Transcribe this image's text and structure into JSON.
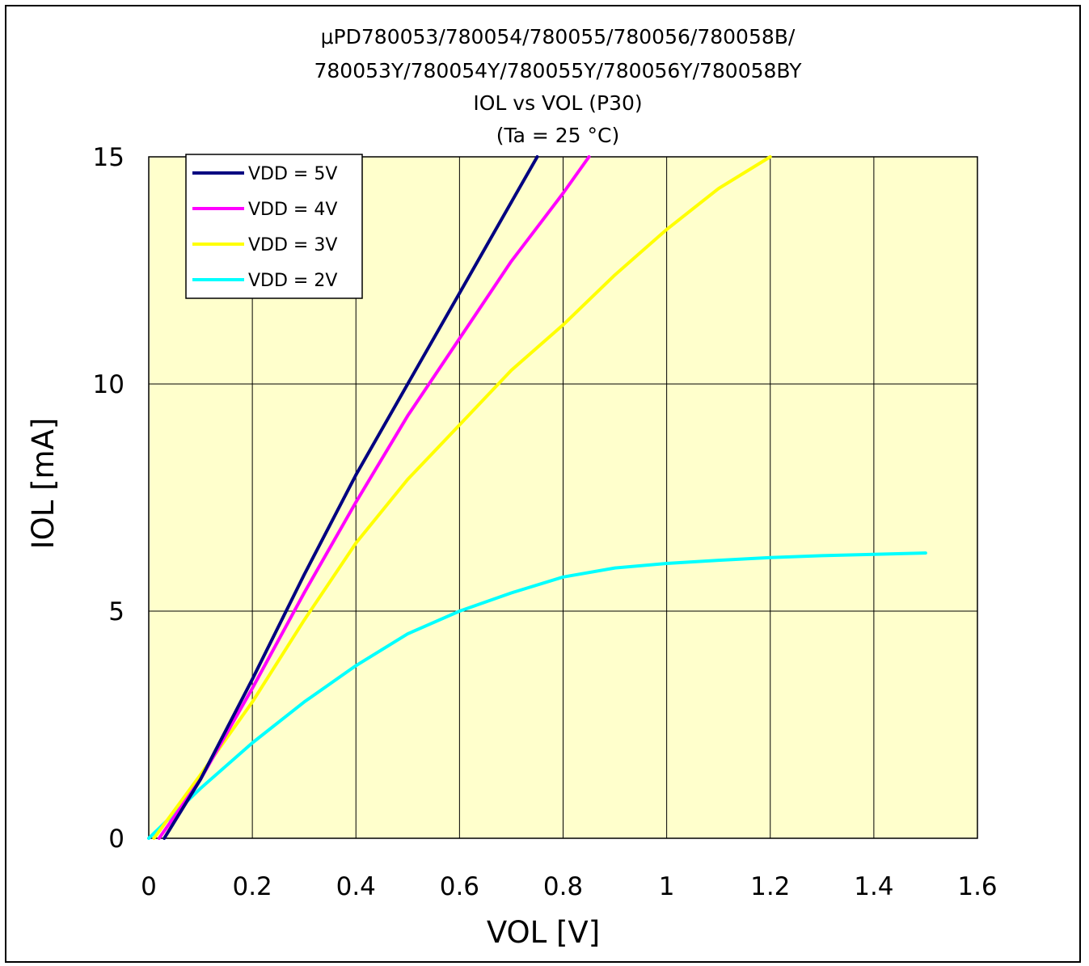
{
  "chart_data": {
    "type": "line",
    "title_lines": [
      "μPD780053/780054/780055/780056/780058B/",
      "780053Y/780054Y/780055Y/780056Y/780058BY",
      "IOL vs VOL (P30)",
      "(Ta = 25 °C)"
    ],
    "xlabel": "VOL [V]",
    "ylabel": "IOL [mA]",
    "xlim": [
      0,
      1.6
    ],
    "ylim": [
      0,
      15
    ],
    "x_ticks": [
      "0",
      "0.2",
      "0.4",
      "0.6",
      "0.8",
      "1",
      "1.2",
      "1.4",
      "1.6"
    ],
    "y_ticks": [
      "0",
      "5",
      "10",
      "15"
    ],
    "grid": true,
    "plot_background": "#ffffcc",
    "legend_position": "top-left",
    "series": [
      {
        "name": "VDD = 5V",
        "color": "#000080",
        "x": [
          0.03,
          0.1,
          0.2,
          0.3,
          0.4,
          0.5,
          0.6,
          0.7,
          0.75
        ],
        "y": [
          0,
          1.3,
          3.5,
          5.8,
          8.0,
          10.0,
          12.0,
          14.0,
          15.0
        ]
      },
      {
        "name": "VDD = 4V",
        "color": "#ff00ff",
        "x": [
          0.02,
          0.1,
          0.2,
          0.3,
          0.4,
          0.5,
          0.6,
          0.7,
          0.8,
          0.85
        ],
        "y": [
          0,
          1.3,
          3.3,
          5.4,
          7.4,
          9.3,
          11.0,
          12.7,
          14.2,
          15.0
        ]
      },
      {
        "name": "VDD = 3V",
        "color": "#ffff00",
        "x": [
          0.01,
          0.1,
          0.2,
          0.3,
          0.4,
          0.5,
          0.6,
          0.7,
          0.8,
          0.9,
          1.0,
          1.1,
          1.2
        ],
        "y": [
          0,
          1.4,
          3.0,
          4.8,
          6.5,
          7.9,
          9.1,
          10.3,
          11.3,
          12.4,
          13.4,
          14.3,
          15.0
        ]
      },
      {
        "name": "VDD = 2V",
        "color": "#00ffff",
        "x": [
          0.0,
          0.1,
          0.2,
          0.3,
          0.4,
          0.5,
          0.6,
          0.7,
          0.8,
          0.9,
          1.0,
          1.1,
          1.2,
          1.3,
          1.4,
          1.5
        ],
        "y": [
          0,
          1.1,
          2.1,
          3.0,
          3.8,
          4.5,
          5.0,
          5.4,
          5.75,
          5.95,
          6.05,
          6.12,
          6.18,
          6.22,
          6.25,
          6.28
        ]
      }
    ]
  }
}
